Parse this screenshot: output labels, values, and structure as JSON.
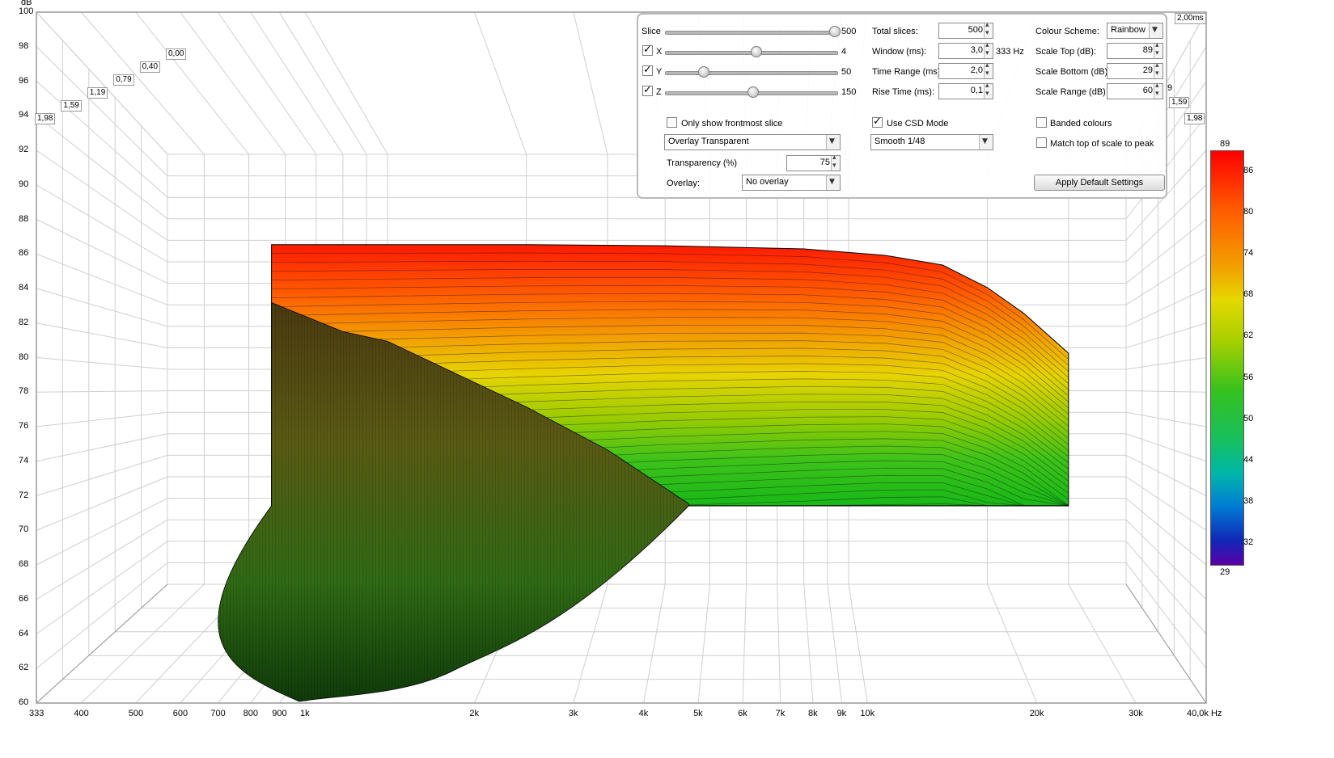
{
  "chart_data": {
    "type": "area",
    "y_unit": "dB",
    "x_unit": "Hz",
    "ylim": [
      60,
      100
    ],
    "xlim": [
      333,
      40000
    ],
    "x_scale": "log",
    "y_ticks": [
      "100",
      "98",
      "96",
      "94",
      "92",
      "90",
      "88",
      "86",
      "84",
      "82",
      "80",
      "78",
      "76",
      "74",
      "72",
      "70",
      "68",
      "66",
      "64",
      "62",
      "60"
    ],
    "x_ticks": [
      {
        "v": 333,
        "label": "333"
      },
      {
        "v": 400,
        "label": "400"
      },
      {
        "v": 500,
        "label": "500"
      },
      {
        "v": 600,
        "label": "600"
      },
      {
        "v": 700,
        "label": "700"
      },
      {
        "v": 800,
        "label": "800"
      },
      {
        "v": 900,
        "label": "900"
      },
      {
        "v": 1000,
        "label": "1k"
      },
      {
        "v": 2000,
        "label": "2k"
      },
      {
        "v": 3000,
        "label": "3k"
      },
      {
        "v": 4000,
        "label": "4k"
      },
      {
        "v": 5000,
        "label": "5k"
      },
      {
        "v": 6000,
        "label": "6k"
      },
      {
        "v": 7000,
        "label": "7k"
      },
      {
        "v": 8000,
        "label": "8k"
      },
      {
        "v": 9000,
        "label": "9k"
      },
      {
        "v": 10000,
        "label": "10k"
      },
      {
        "v": 20000,
        "label": "20k"
      },
      {
        "v": 30000,
        "label": "30k"
      },
      {
        "v": 40000,
        "label": "40,0k Hz"
      }
    ],
    "time_ticks": [
      "1,98",
      "1,59",
      "1,19",
      "0,79",
      "0,40",
      "0,00"
    ],
    "time_ticks_right": [
      "2,00ms",
      "9",
      "1,59",
      "1,98"
    ],
    "series": [
      {
        "x": [
          560,
          1000,
          2000,
          4000,
          8000,
          12000,
          16000,
          20000,
          24000,
          30000
        ],
        "y": [
          91.6,
          91.6,
          91.6,
          91.5,
          91.2,
          90.6,
          89.7,
          87.6,
          85.2,
          81.5
        ]
      },
      {
        "x": [
          560,
          800,
          1000,
          2000,
          3000,
          4500,
          6000,
          10000,
          20000,
          30000
        ],
        "y": [
          86.2,
          83.5,
          82.6,
          76.5,
          72.5,
          67.5,
          67.3,
          67.3,
          67.3,
          67.3
        ]
      }
    ],
    "colorbar": {
      "max_label": "89",
      "min_label": "29",
      "ticks": [
        "86",
        "80",
        "74",
        "68",
        "62",
        "56",
        "50",
        "44",
        "38",
        "32"
      ]
    }
  },
  "controls": {
    "slice": {
      "label": "Slice",
      "value": "500"
    },
    "x": {
      "label": "X",
      "value": "4",
      "checked": true
    },
    "y": {
      "label": "Y",
      "value": "50",
      "checked": true
    },
    "z": {
      "label": "Z",
      "value": "150",
      "checked": true
    },
    "total_slices": {
      "label": "Total slices:",
      "value": "500"
    },
    "window": {
      "label": "Window (ms):",
      "value": "3,0",
      "suffix": "333 Hz"
    },
    "time_range": {
      "label": "Time Range (ms):",
      "value": "2,0"
    },
    "rise_time": {
      "label": "Rise Time (ms):",
      "value": "0,1"
    },
    "colour_scheme": {
      "label": "Colour Scheme:",
      "value": "Rainbow"
    },
    "scale_top": {
      "label": "Scale Top (dB):",
      "value": "89"
    },
    "scale_bottom": {
      "label": "Scale Bottom (dB):",
      "value": "29"
    },
    "scale_range": {
      "label": "Scale Range (dB):",
      "value": "60"
    },
    "only_frontmost": {
      "label": "Only show frontmost slice",
      "checked": false
    },
    "use_csd": {
      "label": "Use CSD Mode",
      "checked": true
    },
    "banded": {
      "label": "Banded colours",
      "checked": false
    },
    "match_top": {
      "label": "Match top of scale to peak",
      "checked": false
    },
    "overlay_mode": {
      "value": "Overlay Transparent"
    },
    "smoothing": {
      "value": "Smooth 1/48"
    },
    "transparency": {
      "label": "Transparency (%)",
      "value": "75"
    },
    "overlay": {
      "label": "Overlay:",
      "value": "No overlay"
    },
    "apply_default": {
      "label": "Apply Default Settings"
    }
  },
  "colors": {
    "grid": "#cfcfcf",
    "axis": "#9a9a9a",
    "panel_border": "#b9b9b9"
  }
}
